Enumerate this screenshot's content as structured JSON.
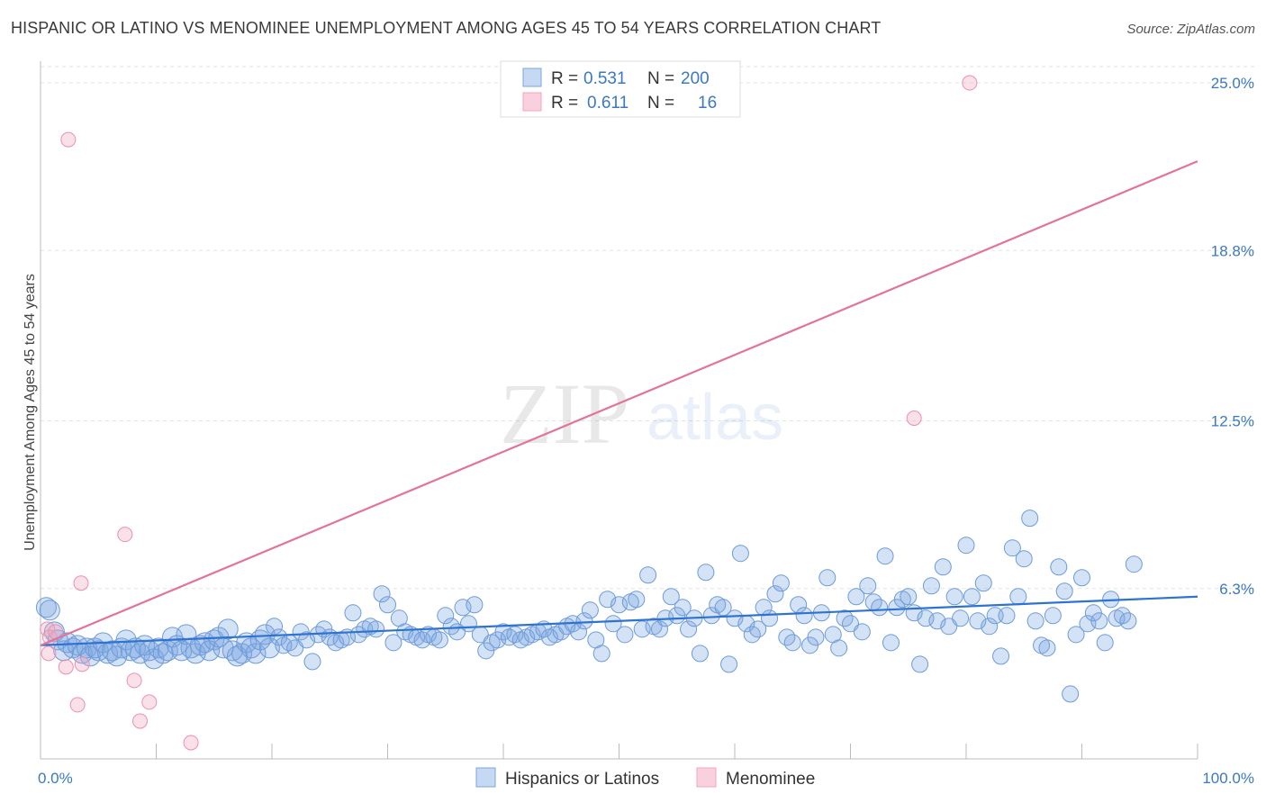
{
  "title": "HISPANIC OR LATINO VS MENOMINEE UNEMPLOYMENT AMONG AGES 45 TO 54 YEARS CORRELATION CHART",
  "source": "Source: ZipAtlas.com",
  "watermark": {
    "zip": "ZIP",
    "atlas": "atlas"
  },
  "legend": {
    "r_label": "R =",
    "n_label": "N =",
    "rows": [
      {
        "r": "0.531",
        "n": "200"
      },
      {
        "r": "0.611",
        "n": "16"
      }
    ]
  },
  "chart_data": {
    "type": "scatter",
    "title": "HISPANIC OR LATINO VS MENOMINEE UNEMPLOYMENT AMONG AGES 45 TO 54 YEARS CORRELATION CHART",
    "xlabel": "",
    "ylabel": "Unemployment Among Ages 45 to 54 years",
    "xlim": [
      0,
      100
    ],
    "ylim": [
      0,
      25.6
    ],
    "x_tick_labels": [
      "0.0%",
      "100.0%"
    ],
    "y_ticks": [
      6.3,
      12.5,
      18.8,
      25.0
    ],
    "y_tick_labels": [
      "6.3%",
      "12.5%",
      "18.8%",
      "25.0%"
    ],
    "grid": true,
    "legend_position": "top-center",
    "series": [
      {
        "name": "Hispanics or Latinos",
        "color": "#7aa6e0",
        "trend": {
          "x": [
            0,
            100
          ],
          "y": [
            4.2,
            6.0
          ]
        },
        "points": [
          [
            0.5,
            5.6
          ],
          [
            0.8,
            5.5
          ],
          [
            1.2,
            4.7
          ],
          [
            1.5,
            4.4
          ],
          [
            2,
            4.0
          ],
          [
            2.3,
            4.3
          ],
          [
            2.8,
            4.1
          ],
          [
            3.2,
            4.2
          ],
          [
            3.6,
            3.9
          ],
          [
            4,
            4.1
          ],
          [
            4.3,
            3.8
          ],
          [
            4.7,
            4.1
          ],
          [
            5,
            4.0
          ],
          [
            5.4,
            4.3
          ],
          [
            5.8,
            3.9
          ],
          [
            6.2,
            4.0
          ],
          [
            6.6,
            3.8
          ],
          [
            7,
            4.1
          ],
          [
            7.4,
            4.4
          ],
          [
            7.8,
            4.0
          ],
          [
            8.2,
            4.1
          ],
          [
            8.6,
            3.9
          ],
          [
            9,
            4.2
          ],
          [
            9.4,
            4.0
          ],
          [
            9.8,
            3.7
          ],
          [
            10.2,
            4.1
          ],
          [
            10.6,
            3.9
          ],
          [
            11,
            4.0
          ],
          [
            11.4,
            4.5
          ],
          [
            11.8,
            4.2
          ],
          [
            12.2,
            4.0
          ],
          [
            12.6,
            4.6
          ],
          [
            13,
            4.1
          ],
          [
            13.4,
            3.9
          ],
          [
            13.8,
            4.2
          ],
          [
            14.2,
            4.3
          ],
          [
            14.6,
            4.0
          ],
          [
            15,
            4.4
          ],
          [
            15.4,
            4.5
          ],
          [
            15.8,
            4.1
          ],
          [
            16.2,
            4.8
          ],
          [
            16.6,
            4.0
          ],
          [
            17,
            3.8
          ],
          [
            17.4,
            3.9
          ],
          [
            17.8,
            4.3
          ],
          [
            18.2,
            4.1
          ],
          [
            18.6,
            3.9
          ],
          [
            19,
            4.4
          ],
          [
            19.4,
            4.6
          ],
          [
            19.8,
            4.1
          ],
          [
            20.2,
            4.9
          ],
          [
            20.6,
            4.5
          ],
          [
            21,
            4.2
          ],
          [
            21.5,
            4.3
          ],
          [
            22,
            4.1
          ],
          [
            22.5,
            4.7
          ],
          [
            23,
            4.4
          ],
          [
            23.5,
            3.6
          ],
          [
            24,
            4.6
          ],
          [
            24.5,
            4.8
          ],
          [
            25,
            4.5
          ],
          [
            25.5,
            4.3
          ],
          [
            26,
            4.4
          ],
          [
            26.5,
            4.5
          ],
          [
            27,
            5.4
          ],
          [
            27.5,
            4.6
          ],
          [
            28,
            4.8
          ],
          [
            28.5,
            4.9
          ],
          [
            29,
            4.8
          ],
          [
            29.5,
            6.1
          ],
          [
            30,
            5.7
          ],
          [
            30.5,
            4.3
          ],
          [
            31,
            5.2
          ],
          [
            31.5,
            4.7
          ],
          [
            32,
            4.6
          ],
          [
            32.5,
            4.5
          ],
          [
            33,
            4.4
          ],
          [
            33.5,
            4.6
          ],
          [
            34,
            4.5
          ],
          [
            34.5,
            4.4
          ],
          [
            35,
            5.3
          ],
          [
            35.5,
            4.9
          ],
          [
            36,
            4.7
          ],
          [
            36.5,
            5.6
          ],
          [
            37,
            5.0
          ],
          [
            37.5,
            5.7
          ],
          [
            38,
            4.6
          ],
          [
            38.5,
            4.0
          ],
          [
            39,
            4.3
          ],
          [
            39.5,
            4.4
          ],
          [
            40,
            4.7
          ],
          [
            40.5,
            4.5
          ],
          [
            41,
            4.6
          ],
          [
            41.5,
            4.4
          ],
          [
            42,
            4.5
          ],
          [
            42.5,
            4.6
          ],
          [
            43,
            4.7
          ],
          [
            43.5,
            4.8
          ],
          [
            44,
            4.5
          ],
          [
            44.5,
            4.6
          ],
          [
            45,
            4.7
          ],
          [
            45.5,
            4.9
          ],
          [
            46,
            5.0
          ],
          [
            46.5,
            4.7
          ],
          [
            47,
            5.1
          ],
          [
            47.5,
            5.5
          ],
          [
            48,
            4.4
          ],
          [
            48.5,
            3.9
          ],
          [
            49,
            5.9
          ],
          [
            49.5,
            5.0
          ],
          [
            50,
            5.7
          ],
          [
            50.5,
            4.6
          ],
          [
            51,
            5.8
          ],
          [
            51.5,
            5.9
          ],
          [
            52,
            4.8
          ],
          [
            52.5,
            6.8
          ],
          [
            53,
            4.9
          ],
          [
            53.5,
            4.8
          ],
          [
            54,
            5.2
          ],
          [
            54.5,
            6.0
          ],
          [
            55,
            5.3
          ],
          [
            55.5,
            5.6
          ],
          [
            56,
            4.8
          ],
          [
            56.5,
            5.2
          ],
          [
            57,
            3.9
          ],
          [
            57.5,
            6.9
          ],
          [
            58,
            5.3
          ],
          [
            58.5,
            5.7
          ],
          [
            59,
            5.6
          ],
          [
            59.5,
            3.5
          ],
          [
            60,
            5.2
          ],
          [
            60.5,
            7.6
          ],
          [
            61,
            5.0
          ],
          [
            61.5,
            4.6
          ],
          [
            62,
            4.8
          ],
          [
            62.5,
            5.6
          ],
          [
            63,
            5.2
          ],
          [
            63.5,
            6.1
          ],
          [
            64,
            6.5
          ],
          [
            64.5,
            4.5
          ],
          [
            65,
            4.3
          ],
          [
            65.5,
            5.7
          ],
          [
            66,
            5.3
          ],
          [
            66.5,
            4.2
          ],
          [
            67,
            4.5
          ],
          [
            67.5,
            5.4
          ],
          [
            68,
            6.7
          ],
          [
            68.5,
            4.6
          ],
          [
            69,
            4.1
          ],
          [
            69.5,
            5.2
          ],
          [
            70,
            5.0
          ],
          [
            70.5,
            6.0
          ],
          [
            71,
            4.7
          ],
          [
            71.5,
            6.4
          ],
          [
            72,
            5.8
          ],
          [
            72.5,
            5.6
          ],
          [
            73,
            7.5
          ],
          [
            73.5,
            4.3
          ],
          [
            74,
            5.6
          ],
          [
            74.5,
            5.9
          ],
          [
            75,
            6.0
          ],
          [
            75.5,
            5.4
          ],
          [
            76,
            3.5
          ],
          [
            76.5,
            5.2
          ],
          [
            77,
            6.4
          ],
          [
            77.5,
            5.1
          ],
          [
            78,
            7.1
          ],
          [
            78.5,
            4.9
          ],
          [
            79,
            6.0
          ],
          [
            79.5,
            5.2
          ],
          [
            80,
            7.9
          ],
          [
            80.5,
            6.0
          ],
          [
            81,
            5.1
          ],
          [
            81.5,
            6.5
          ],
          [
            82,
            4.9
          ],
          [
            82.5,
            5.3
          ],
          [
            83,
            3.8
          ],
          [
            83.5,
            5.3
          ],
          [
            84,
            7.8
          ],
          [
            84.5,
            6.0
          ],
          [
            85,
            7.4
          ],
          [
            85.5,
            8.9
          ],
          [
            86,
            5.1
          ],
          [
            86.5,
            4.2
          ],
          [
            87,
            4.1
          ],
          [
            87.5,
            5.3
          ],
          [
            88,
            7.1
          ],
          [
            88.5,
            6.2
          ],
          [
            89,
            2.4
          ],
          [
            89.5,
            4.6
          ],
          [
            90,
            6.7
          ],
          [
            90.5,
            5.0
          ],
          [
            91,
            5.4
          ],
          [
            91.5,
            5.1
          ],
          [
            92,
            4.3
          ],
          [
            92.5,
            5.9
          ],
          [
            93,
            5.2
          ],
          [
            93.5,
            5.3
          ],
          [
            94,
            5.1
          ],
          [
            94.5,
            7.2
          ]
        ]
      },
      {
        "name": "Menominee",
        "color": "#f2a7bf",
        "trend": {
          "x": [
            0,
            100
          ],
          "y": [
            4.2,
            22.1
          ]
        },
        "points": [
          [
            0.6,
            4.8
          ],
          [
            0.8,
            4.5
          ],
          [
            0.7,
            3.9
          ],
          [
            1.3,
            4.7
          ],
          [
            2.4,
            22.9
          ],
          [
            3.2,
            2.0
          ],
          [
            3.6,
            3.5
          ],
          [
            3.5,
            6.5
          ],
          [
            2.2,
            3.4
          ],
          [
            7.3,
            8.3
          ],
          [
            8.1,
            2.9
          ],
          [
            8.6,
            1.4
          ],
          [
            9.4,
            2.1
          ],
          [
            13,
            0.6
          ],
          [
            75.5,
            12.6
          ],
          [
            80.3,
            25.0
          ]
        ]
      }
    ]
  },
  "bottom_legend": [
    "Hispanics or Latinos",
    "Menominee"
  ]
}
